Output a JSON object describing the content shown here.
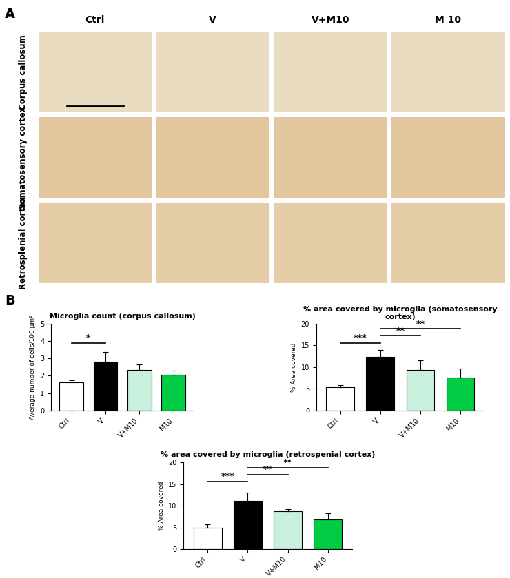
{
  "panel_a": {
    "label": "A",
    "columns": [
      "Ctrl",
      "V",
      "V+M10",
      "M 10"
    ],
    "rows": [
      "Corpus callosum",
      "Somatosensory cortex",
      "Retrosplenial cortex"
    ]
  },
  "panel_b": {
    "label": "B"
  },
  "chart_data": [
    {
      "type": "bar",
      "title": "Microglia count (corpus callosum)",
      "y_label": "Average number of cells/100 µm²",
      "categories": [
        "Ctrl",
        "V",
        "V+M10",
        "M10"
      ],
      "values": [
        1.6,
        2.8,
        2.35,
        2.05
      ],
      "errors": [
        0.15,
        0.55,
        0.3,
        0.25
      ],
      "colors": [
        "#ffffff",
        "#000000",
        "#c8f0dc",
        "#00cc44"
      ],
      "ylim": [
        0,
        5
      ],
      "yticks": [
        0,
        1,
        2,
        3,
        4,
        5
      ],
      "significance": [
        {
          "from": "Ctrl",
          "to": "V",
          "text": "*"
        }
      ]
    },
    {
      "type": "bar",
      "title": "% area covered by microglia (somatosensory cortex)",
      "y_label": "% Area covered",
      "categories": [
        "Ctrl",
        "V",
        "V+M10",
        "M10"
      ],
      "values": [
        5.3,
        12.4,
        9.3,
        7.6
      ],
      "errors": [
        0.6,
        1.5,
        2.3,
        2.0
      ],
      "colors": [
        "#ffffff",
        "#000000",
        "#c8f0dc",
        "#00cc44"
      ],
      "ylim": [
        0,
        20
      ],
      "yticks": [
        0,
        5,
        10,
        15,
        20
      ],
      "significance": [
        {
          "from": "Ctrl",
          "to": "V",
          "text": "***"
        },
        {
          "from": "V",
          "to": "V+M10",
          "text": "**"
        },
        {
          "from": "V",
          "to": "M10",
          "text": "**"
        }
      ]
    },
    {
      "type": "bar",
      "title": "% area covered by microglia (retrospenial cortex)",
      "y_label": "% Area covered",
      "categories": [
        "Ctrl",
        "V",
        "V+M10",
        "M10"
      ],
      "values": [
        5.0,
        11.2,
        8.8,
        6.9
      ],
      "errors": [
        0.7,
        1.9,
        0.5,
        1.3
      ],
      "colors": [
        "#ffffff",
        "#000000",
        "#c8f0dc",
        "#00cc44"
      ],
      "ylim": [
        0,
        20
      ],
      "yticks": [
        0,
        5,
        10,
        15,
        20
      ],
      "significance": [
        {
          "from": "Ctrl",
          "to": "V",
          "text": "***"
        },
        {
          "from": "V",
          "to": "V+M10",
          "text": "**"
        },
        {
          "from": "V",
          "to": "M10",
          "text": "**"
        }
      ]
    }
  ]
}
